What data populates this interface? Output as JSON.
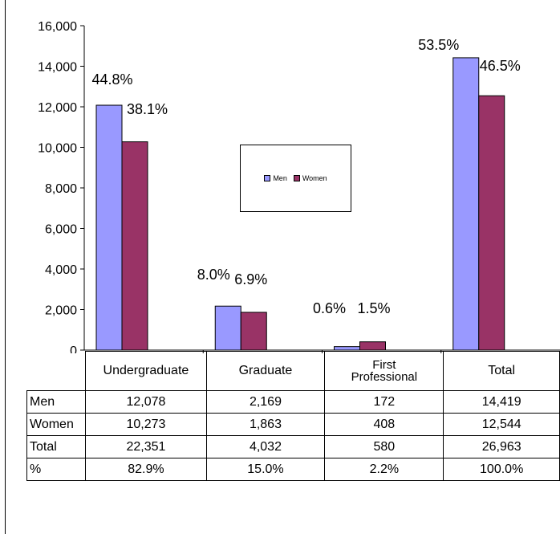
{
  "chart_data": {
    "type": "bar",
    "categories": [
      "Undergraduate",
      "Graduate",
      "First Professional",
      "Total"
    ],
    "series": [
      {
        "name": "Men",
        "values": [
          12078,
          2169,
          172,
          14419
        ],
        "color": "#9999ff",
        "pct_labels": [
          "44.8%",
          "8.0%",
          "0.6%",
          "53.5%"
        ]
      },
      {
        "name": "Women",
        "values": [
          10273,
          1863,
          408,
          12544
        ],
        "color": "#993366",
        "pct_labels": [
          "38.1%",
          "6.9%",
          "1.5%",
          "46.5%"
        ]
      }
    ],
    "ylim": [
      0,
      16000
    ],
    "yticks": [
      "0",
      "2,000",
      "4,000",
      "6,000",
      "8,000",
      "10,000",
      "12,000",
      "14,000",
      "16,000"
    ],
    "legend_position": "center",
    "grid": false
  },
  "table": {
    "headers": [
      "Undergraduate",
      "Graduate",
      "First",
      "Professional",
      "Total"
    ],
    "rows": [
      {
        "label": "Men",
        "cells": [
          "12,078",
          "2,169",
          "172",
          "14,419"
        ]
      },
      {
        "label": "Women",
        "cells": [
          "10,273",
          "1,863",
          "408",
          "12,544"
        ]
      },
      {
        "label": "Total",
        "cells": [
          "22,351",
          "4,032",
          "580",
          "26,963"
        ]
      },
      {
        "label": "%",
        "cells": [
          "82.9%",
          "15.0%",
          "2.2%",
          "100.0%"
        ]
      }
    ]
  }
}
